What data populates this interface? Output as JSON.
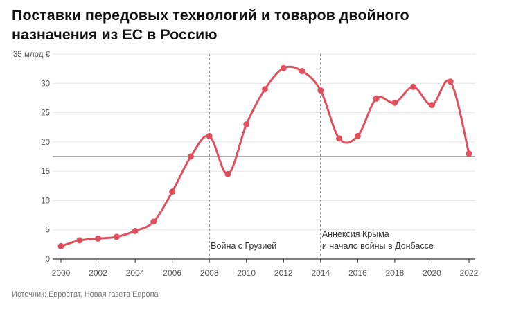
{
  "title_line1": "Поставки передовых технологий и товаров двойного",
  "title_line2": "назначения из ЕС в Россию",
  "source": "Источник: Евростат, Новая газета Европа",
  "colors": {
    "line": "#e0505c",
    "grid": "#e4e4e4",
    "axis_text": "#555555",
    "ref_line": "#555555"
  },
  "chart_data": {
    "type": "line",
    "title": "Поставки передовых технологий и товаров двойного назначения из ЕС в Россию",
    "ylabel": "35 млрд €",
    "ylim": [
      0,
      35
    ],
    "yticks": [
      0,
      5,
      10,
      15,
      20,
      25,
      30,
      35
    ],
    "ytick_labels": [
      "0",
      "5",
      "10",
      "15",
      "20",
      "25",
      "30",
      "35 млрд €"
    ],
    "xlim": [
      2000,
      2022
    ],
    "xticks": [
      2000,
      2002,
      2004,
      2006,
      2008,
      2010,
      2012,
      2014,
      2016,
      2018,
      2020,
      2022
    ],
    "grid": true,
    "reference_line": {
      "y": 17.5
    },
    "series": [
      {
        "x": [
          2000,
          2001,
          2002,
          2003,
          2004,
          2005,
          2006,
          2007,
          2008,
          2009,
          2010,
          2011,
          2012,
          2013,
          2014,
          2015,
          2016,
          2017,
          2018,
          2019,
          2020,
          2021,
          2022
        ],
        "values": [
          2.2,
          3.2,
          3.5,
          3.8,
          4.8,
          6.4,
          11.5,
          17.5,
          21.0,
          14.5,
          23.0,
          29.0,
          32.6,
          32.1,
          28.8,
          20.6,
          21.0,
          27.4,
          26.7,
          29.4,
          26.3,
          30.3,
          18.0
        ]
      }
    ],
    "annotations": [
      {
        "x": 2008,
        "lines": [
          "Война с Грузией"
        ]
      },
      {
        "x": 2014,
        "lines": [
          "Аннексия Крыма",
          "и начало войны в Донбассе"
        ]
      }
    ]
  }
}
